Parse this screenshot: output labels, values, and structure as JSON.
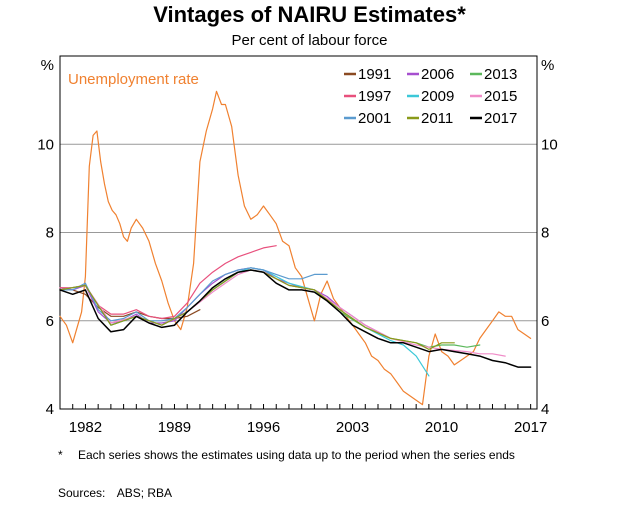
{
  "title": "Vintages of NAIRU Estimates*",
  "subtitle": "Per cent of labour force",
  "footnote": {
    "mark": "*",
    "text": "Each series shows the estimates using data up to the period when the series ends"
  },
  "sources": {
    "label": "Sources:",
    "text": "ABS; RBA"
  },
  "chart_data": {
    "type": "line",
    "y_unit_left": "%",
    "y_unit_right": "%",
    "xlim": [
      1980.0,
      2017.5
    ],
    "ylim": [
      4,
      12
    ],
    "yticks": [
      4,
      6,
      8,
      10
    ],
    "xticks": [
      1982,
      1989,
      1996,
      2003,
      2010,
      2017
    ],
    "grid": "horizontal",
    "legend_position": "top-right",
    "annotation": {
      "text": "Unemployment rate",
      "color": "#f08130"
    },
    "series": [
      {
        "name": "Unemployment rate",
        "legend": false,
        "color": "#f08130",
        "width": 1.2,
        "x": [
          1980.0,
          1980.5,
          1981.0,
          1981.3,
          1981.7,
          1982.0,
          1982.3,
          1982.6,
          1982.9,
          1983.2,
          1983.5,
          1983.8,
          1984.1,
          1984.4,
          1984.7,
          1985.0,
          1985.3,
          1985.6,
          1986.0,
          1986.5,
          1987.0,
          1987.5,
          1988.0,
          1988.5,
          1989.0,
          1989.5,
          1990.0,
          1990.5,
          1991.0,
          1991.5,
          1992.0,
          1992.3,
          1992.7,
          1993.0,
          1993.5,
          1994.0,
          1994.5,
          1995.0,
          1995.5,
          1996.0,
          1996.5,
          1997.0,
          1997.5,
          1998.0,
          1998.5,
          1999.0,
          1999.5,
          2000.0,
          2000.5,
          2001.0,
          2001.5,
          2002.0,
          2002.5,
          2003.0,
          2003.5,
          2004.0,
          2004.5,
          2005.0,
          2005.5,
          2006.0,
          2006.5,
          2007.0,
          2007.5,
          2008.0,
          2008.5,
          2009.0,
          2009.5,
          2010.0,
          2010.5,
          2011.0,
          2011.5,
          2012.0,
          2012.5,
          2013.0,
          2013.5,
          2014.0,
          2014.5,
          2015.0,
          2015.5,
          2016.0,
          2016.5,
          2017.0
        ],
        "values": [
          6.1,
          5.9,
          5.5,
          5.8,
          6.2,
          7.0,
          9.5,
          10.2,
          10.3,
          9.6,
          9.1,
          8.7,
          8.5,
          8.4,
          8.2,
          7.9,
          7.8,
          8.1,
          8.3,
          8.1,
          7.8,
          7.3,
          6.9,
          6.4,
          6.0,
          5.8,
          6.3,
          7.3,
          9.6,
          10.3,
          10.8,
          11.2,
          10.9,
          10.9,
          10.4,
          9.3,
          8.6,
          8.3,
          8.4,
          8.6,
          8.4,
          8.2,
          7.8,
          7.7,
          7.2,
          7.0,
          6.5,
          6.0,
          6.6,
          6.9,
          6.5,
          6.3,
          6.1,
          5.9,
          5.7,
          5.5,
          5.2,
          5.1,
          4.9,
          4.8,
          4.6,
          4.4,
          4.3,
          4.2,
          4.1,
          5.2,
          5.7,
          5.3,
          5.2,
          5.0,
          5.1,
          5.2,
          5.3,
          5.6,
          5.8,
          6.0,
          6.2,
          6.1,
          6.1,
          5.8,
          5.7,
          5.6
        ]
      },
      {
        "name": "1991",
        "color": "#8b4a22",
        "width": 1.2,
        "x": [
          1980.0,
          1981.0,
          1982.0,
          1983.0,
          1984.0,
          1985.0,
          1986.0,
          1987.0,
          1988.0,
          1989.0,
          1990.0,
          1991.0
        ],
        "values": [
          6.7,
          6.7,
          6.6,
          6.3,
          6.1,
          6.1,
          6.2,
          6.1,
          6.05,
          6.05,
          6.1,
          6.25
        ]
      },
      {
        "name": "2006",
        "color": "#a64fcf",
        "width": 1.2,
        "x": [
          1980.0,
          1981.0,
          1982.0,
          1983.0,
          1984.0,
          1985.0,
          1986.0,
          1987.0,
          1988.0,
          1989.0,
          1990.0,
          1991.0,
          1992.0,
          1993.0,
          1994.0,
          1995.0,
          1996.0,
          1997.0,
          1998.0,
          1999.0,
          2000.0,
          2001.0,
          2002.0,
          2003.0,
          2004.0,
          2005.0,
          2006.0
        ],
        "values": [
          6.75,
          6.7,
          6.8,
          6.2,
          5.95,
          6.0,
          6.15,
          5.95,
          5.95,
          6.0,
          6.3,
          6.6,
          6.85,
          7.05,
          7.15,
          7.2,
          7.15,
          6.95,
          6.85,
          6.75,
          6.7,
          6.55,
          6.3,
          6.1,
          5.9,
          5.75,
          5.6
        ]
      },
      {
        "name": "2013",
        "color": "#5cb85c",
        "width": 1.2,
        "x": [
          1980.0,
          1982.0,
          1984.0,
          1986.0,
          1988.0,
          1990.0,
          1992.0,
          1994.0,
          1995.0,
          1996.0,
          1998.0,
          2000.0,
          2002.0,
          2004.0,
          2006.0,
          2008.0,
          2009.0,
          2010.0,
          2011.0,
          2012.0,
          2013.0
        ],
        "values": [
          6.7,
          6.8,
          5.9,
          6.1,
          5.9,
          6.2,
          6.7,
          7.1,
          7.15,
          7.1,
          6.8,
          6.7,
          6.2,
          5.85,
          5.6,
          5.5,
          5.4,
          5.45,
          5.45,
          5.4,
          5.45
        ]
      },
      {
        "name": "1997",
        "color": "#e8507d",
        "width": 1.2,
        "x": [
          1980.0,
          1981.0,
          1982.0,
          1983.0,
          1984.0,
          1985.0,
          1986.0,
          1987.0,
          1988.0,
          1989.0,
          1990.0,
          1991.0,
          1992.0,
          1993.0,
          1994.0,
          1995.0,
          1996.0,
          1997.0
        ],
        "values": [
          6.75,
          6.75,
          6.8,
          6.35,
          6.15,
          6.15,
          6.25,
          6.1,
          6.05,
          6.1,
          6.4,
          6.85,
          7.1,
          7.3,
          7.45,
          7.55,
          7.65,
          7.7
        ]
      },
      {
        "name": "2009",
        "color": "#3cc8d8",
        "width": 1.2,
        "x": [
          1980.0,
          1982.0,
          1984.0,
          1986.0,
          1988.0,
          1990.0,
          1992.0,
          1994.0,
          1995.0,
          1996.0,
          1998.0,
          2000.0,
          2002.0,
          2004.0,
          2006.0,
          2007.0,
          2008.0,
          2009.0
        ],
        "values": [
          6.7,
          6.8,
          5.9,
          6.1,
          5.9,
          6.2,
          6.7,
          7.1,
          7.2,
          7.15,
          6.85,
          6.7,
          6.25,
          5.85,
          5.55,
          5.45,
          5.2,
          4.75
        ]
      },
      {
        "name": "2015",
        "color": "#f08cc8",
        "width": 1.2,
        "x": [
          1980.0,
          1982.0,
          1984.0,
          1986.0,
          1988.0,
          1990.0,
          1992.0,
          1994.0,
          1995.0,
          1996.0,
          1998.0,
          2000.0,
          2002.0,
          2004.0,
          2006.0,
          2008.0,
          2010.0,
          2012.0,
          2013.0,
          2014.0,
          2015.0
        ],
        "values": [
          6.7,
          6.8,
          5.95,
          6.1,
          5.9,
          6.2,
          6.65,
          7.05,
          7.15,
          7.1,
          6.8,
          6.7,
          6.3,
          5.9,
          5.6,
          5.45,
          5.35,
          5.3,
          5.25,
          5.25,
          5.2
        ]
      },
      {
        "name": "2001",
        "color": "#5b9bcf",
        "width": 1.2,
        "x": [
          1980.0,
          1981.0,
          1982.0,
          1983.0,
          1984.0,
          1985.0,
          1986.0,
          1987.0,
          1988.0,
          1989.0,
          1990.0,
          1991.0,
          1992.0,
          1993.0,
          1994.0,
          1995.0,
          1996.0,
          1997.0,
          1998.0,
          1999.0,
          2000.0,
          2001.0
        ],
        "values": [
          6.7,
          6.7,
          6.85,
          6.25,
          6.0,
          6.05,
          6.2,
          6.0,
          6.0,
          6.05,
          6.3,
          6.6,
          6.9,
          7.05,
          7.15,
          7.2,
          7.15,
          7.05,
          6.95,
          6.95,
          7.05,
          7.05
        ]
      },
      {
        "name": "2011",
        "color": "#8a9a1a",
        "width": 1.2,
        "x": [
          1980.0,
          1982.0,
          1984.0,
          1986.0,
          1988.0,
          1990.0,
          1992.0,
          1994.0,
          1995.0,
          1996.0,
          1998.0,
          2000.0,
          2002.0,
          2004.0,
          2006.0,
          2008.0,
          2009.0,
          2010.0,
          2011.0
        ],
        "values": [
          6.7,
          6.8,
          5.9,
          6.1,
          5.9,
          6.2,
          6.7,
          7.1,
          7.15,
          7.1,
          6.8,
          6.7,
          6.25,
          5.85,
          5.6,
          5.5,
          5.35,
          5.5,
          5.5
        ]
      },
      {
        "name": "2017",
        "color": "#000000",
        "width": 1.5,
        "x": [
          1980.0,
          1981.0,
          1981.5,
          1982.0,
          1983.0,
          1984.0,
          1985.0,
          1986.0,
          1987.0,
          1988.0,
          1989.0,
          1990.0,
          1991.0,
          1992.0,
          1993.0,
          1994.0,
          1995.0,
          1996.0,
          1997.0,
          1998.0,
          1999.0,
          2000.0,
          2001.0,
          2002.0,
          2003.0,
          2004.0,
          2005.0,
          2006.0,
          2007.0,
          2008.0,
          2009.0,
          2010.0,
          2011.0,
          2012.0,
          2013.0,
          2014.0,
          2015.0,
          2016.0,
          2017.0
        ],
        "values": [
          6.7,
          6.6,
          6.65,
          6.7,
          6.05,
          5.75,
          5.8,
          6.1,
          5.95,
          5.85,
          5.9,
          6.2,
          6.45,
          6.75,
          6.95,
          7.1,
          7.15,
          7.1,
          6.85,
          6.7,
          6.7,
          6.65,
          6.45,
          6.2,
          5.9,
          5.75,
          5.6,
          5.5,
          5.5,
          5.4,
          5.3,
          5.35,
          5.3,
          5.25,
          5.2,
          5.1,
          5.05,
          4.95,
          4.95
        ]
      }
    ]
  }
}
